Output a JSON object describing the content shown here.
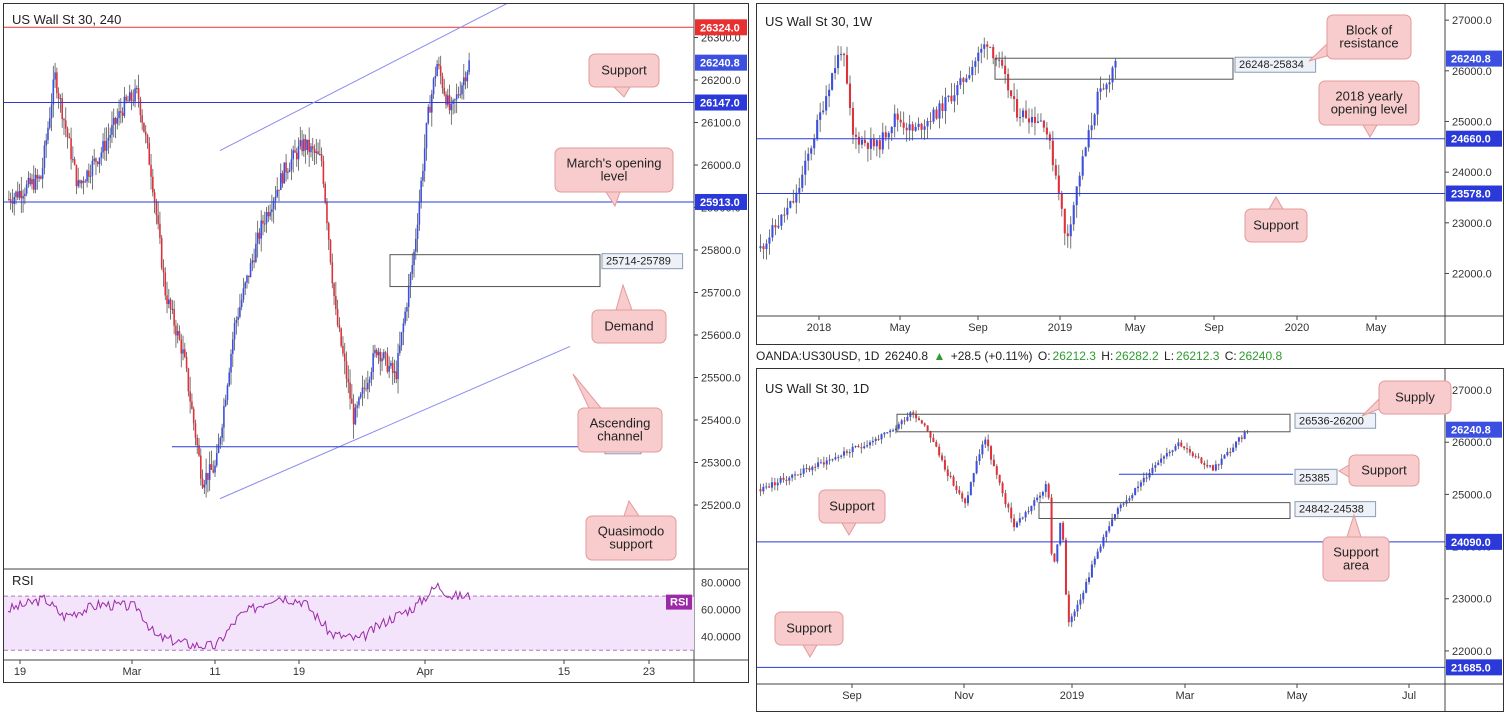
{
  "colors": {
    "up": "#3b4fe0",
    "down": "#e0303a",
    "level": "#2a39d8",
    "channel": "#8a8cf0",
    "resistance_line": "#e83030",
    "rsi_line": "#9b2aa8",
    "rsi_fill": "#f3e3fb",
    "callout_bg": "#f8cccc",
    "callout_border": "#e39a9a",
    "gain": "#2e9c2e"
  },
  "panels": [
    {
      "id": "h4",
      "title": "US Wall St 30, 240",
      "ylim": [
        25120,
        26360
      ],
      "bars": 260,
      "prices": [
        26300.0,
        26200.0,
        26100.0,
        26000.0,
        25900.0,
        25800.0,
        25700.0,
        25600.0,
        25500.0,
        25400.0,
        25300.0,
        25200.0
      ],
      "xticks": [
        "19",
        "Mar",
        "11",
        "19",
        "Apr",
        "15",
        "23"
      ],
      "levels": [
        {
          "value": 26324,
          "label": "26324.0",
          "color": "#e83030"
        },
        {
          "value": 26147,
          "label": "26147.0",
          "color": "#2a39d8"
        },
        {
          "value": 25913,
          "label": "25913.0",
          "color": "#2a39d8"
        }
      ],
      "last": {
        "value": 26240.8,
        "label": "26240.8"
      },
      "zone": {
        "label": "25714-25789",
        "hi": 25789,
        "lo": 25714
      },
      "qm": {
        "value": 25337,
        "label": "25337"
      },
      "callouts": [
        {
          "lines": [
            "Support"
          ]
        },
        {
          "lines": [
            "March's opening",
            "level"
          ]
        },
        {
          "lines": [
            "Demand"
          ]
        },
        {
          "lines": [
            "Ascending",
            "channel"
          ]
        },
        {
          "lines": [
            "Quasimodo",
            "support"
          ]
        }
      ],
      "rsi": {
        "label": "RSI",
        "badge": "RSI",
        "ticks": [
          "80.0000",
          "60.0000",
          "40.0000"
        ]
      }
    },
    {
      "id": "w1",
      "title": "US Wall St 30, 1W",
      "ylim": [
        21200,
        27200
      ],
      "bars": 120,
      "prices": [
        27000.0,
        26000.0,
        25000.0,
        24000.0,
        23000.0,
        22000.0
      ],
      "xticks": [
        "2018",
        "May",
        "Sep",
        "2019",
        "May",
        "Sep",
        "2020",
        "May"
      ],
      "levels": [
        {
          "value": 24660,
          "label": "24660.0",
          "color": "#2a39d8"
        },
        {
          "value": 23578,
          "label": "23578.0",
          "color": "#2a39d8"
        }
      ],
      "last": {
        "value": 26240.8,
        "label": "26240.8"
      },
      "zone": {
        "label": "26248-25834",
        "hi": 26248,
        "lo": 25834
      },
      "callouts": [
        {
          "lines": [
            "Block of",
            "resistance"
          ]
        },
        {
          "lines": [
            "2018 yearly",
            "opening level"
          ]
        },
        {
          "lines": [
            "Support"
          ]
        }
      ]
    },
    {
      "id": "d1",
      "title": "US Wall St 30, 1D",
      "ylim": [
        21500,
        27250
      ],
      "bars": 170,
      "prices": [
        27000.0,
        26000.0,
        25000.0,
        24000.0,
        23000.0,
        22000.0
      ],
      "xticks": [
        "Sep",
        "Nov",
        "2019",
        "Mar",
        "May",
        "Jul"
      ],
      "levels": [
        {
          "value": 24090,
          "label": "24090.0",
          "color": "#2a39d8"
        },
        {
          "value": 21685,
          "label": "21685.0",
          "color": "#2a39d8"
        }
      ],
      "last": {
        "value": 26240.8,
        "label": "26240.8"
      },
      "zone": {
        "label": "26536-26200",
        "hi": 26536,
        "lo": 26200
      },
      "zone2": {
        "label": "24842-24538",
        "hi": 24842,
        "lo": 24538
      },
      "support_line": {
        "value": 25385,
        "label": "25385"
      },
      "callouts": [
        {
          "lines": [
            "Supply"
          ]
        },
        {
          "lines": [
            "Support"
          ]
        },
        {
          "lines": [
            "Support"
          ]
        },
        {
          "lines": [
            "Support",
            "area"
          ]
        },
        {
          "lines": [
            "Support"
          ]
        }
      ]
    }
  ],
  "header": {
    "symbol": "OANDA:US30USD, 1D",
    "price": "26240.8",
    "change": "+28.5 (+0.11%)",
    "o_label": "O:",
    "o": "26212.3",
    "h_label": "H:",
    "h": "26282.2",
    "l_label": "L:",
    "l": "26212.3",
    "c_label": "C:",
    "c": "26240.8"
  }
}
